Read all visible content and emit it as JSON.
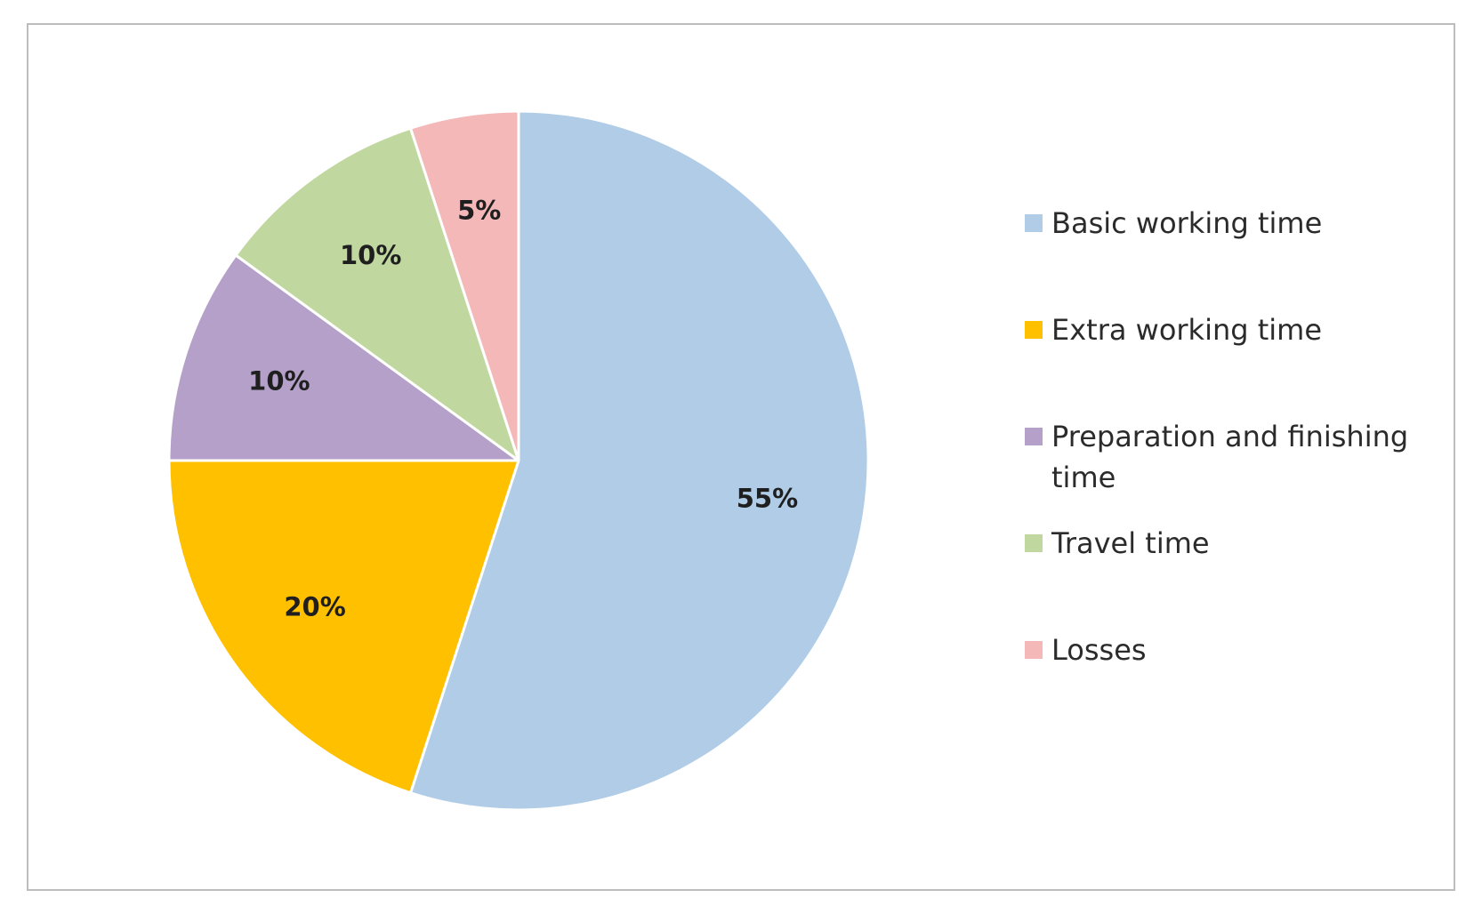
{
  "chart_data": {
    "type": "pie",
    "categories": [
      "Basic working time",
      "Extra working time",
      "Preparation and finishing time",
      "Travel time",
      "Losses"
    ],
    "values": [
      55,
      20,
      10,
      10,
      5
    ],
    "data_labels": [
      "55%",
      "20%",
      "10%",
      "10%",
      "5%"
    ],
    "colors": [
      "#b0cce6",
      "#ffc000",
      "#b4a0c8",
      "#c0d8a0",
      "#f4b8b8"
    ],
    "legend_position": "right",
    "start": "top",
    "direction": "clockwise"
  }
}
